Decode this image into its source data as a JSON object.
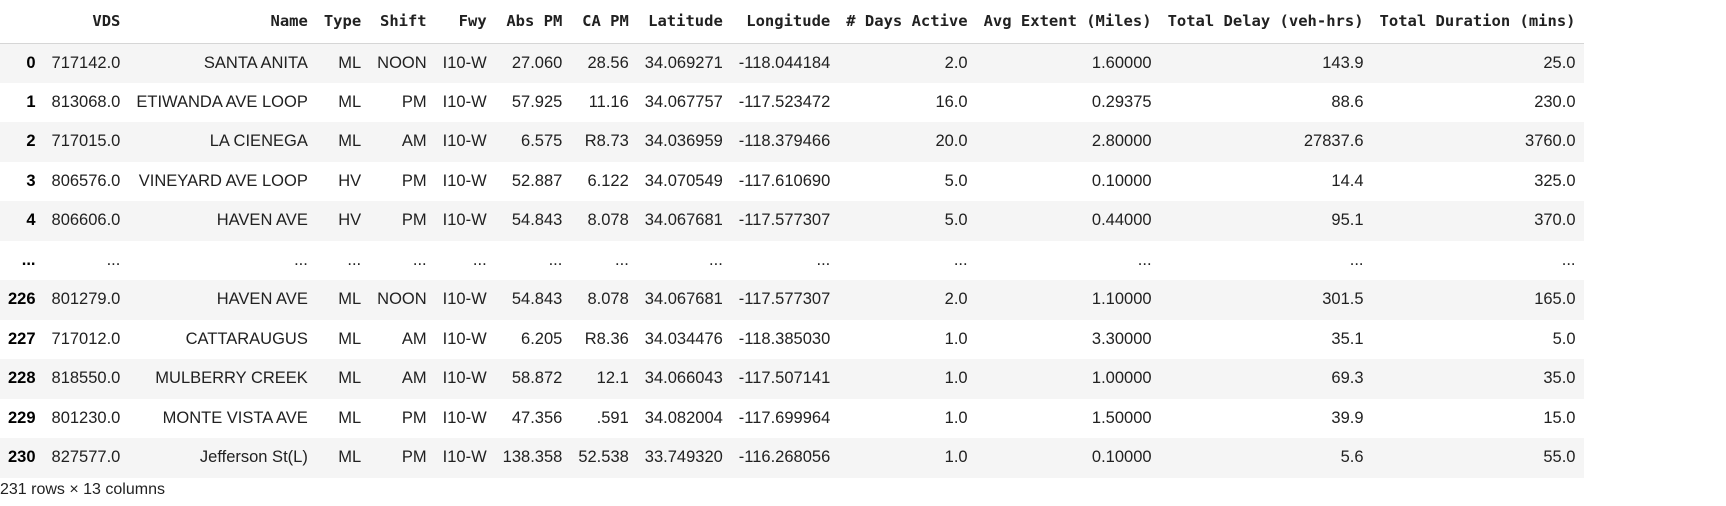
{
  "table": {
    "index_header": "",
    "columns": [
      "VDS",
      "Name",
      "Type",
      "Shift",
      "Fwy",
      "Abs PM",
      "CA PM",
      "Latitude",
      "Longitude",
      "# Days Active",
      "Avg Extent (Miles)",
      "Total Delay (veh-hrs)",
      "Total Duration (mins)"
    ],
    "rows": [
      {
        "index": "0",
        "cells": [
          "717142.0",
          "SANTA ANITA",
          "ML",
          "NOON",
          "I10-W",
          "27.060",
          "28.56",
          "34.069271",
          "-118.044184",
          "2.0",
          "1.60000",
          "143.9",
          "25.0"
        ]
      },
      {
        "index": "1",
        "cells": [
          "813068.0",
          "ETIWANDA AVE LOOP",
          "ML",
          "PM",
          "I10-W",
          "57.925",
          "11.16",
          "34.067757",
          "-117.523472",
          "16.0",
          "0.29375",
          "88.6",
          "230.0"
        ]
      },
      {
        "index": "2",
        "cells": [
          "717015.0",
          "LA CIENEGA",
          "ML",
          "AM",
          "I10-W",
          "6.575",
          "R8.73",
          "34.036959",
          "-118.379466",
          "20.0",
          "2.80000",
          "27837.6",
          "3760.0"
        ]
      },
      {
        "index": "3",
        "cells": [
          "806576.0",
          "VINEYARD AVE LOOP",
          "HV",
          "PM",
          "I10-W",
          "52.887",
          "6.122",
          "34.070549",
          "-117.610690",
          "5.0",
          "0.10000",
          "14.4",
          "325.0"
        ]
      },
      {
        "index": "4",
        "cells": [
          "806606.0",
          "HAVEN AVE",
          "HV",
          "PM",
          "I10-W",
          "54.843",
          "8.078",
          "34.067681",
          "-117.577307",
          "5.0",
          "0.44000",
          "95.1",
          "370.0"
        ]
      },
      {
        "index": "...",
        "cells": [
          "...",
          "...",
          "...",
          "...",
          "...",
          "...",
          "...",
          "...",
          "...",
          "...",
          "...",
          "...",
          "..."
        ]
      },
      {
        "index": "226",
        "cells": [
          "801279.0",
          "HAVEN AVE",
          "ML",
          "NOON",
          "I10-W",
          "54.843",
          "8.078",
          "34.067681",
          "-117.577307",
          "2.0",
          "1.10000",
          "301.5",
          "165.0"
        ]
      },
      {
        "index": "227",
        "cells": [
          "717012.0",
          "CATTARAUGUS",
          "ML",
          "AM",
          "I10-W",
          "6.205",
          "R8.36",
          "34.034476",
          "-118.385030",
          "1.0",
          "3.30000",
          "35.1",
          "5.0"
        ]
      },
      {
        "index": "228",
        "cells": [
          "818550.0",
          "MULBERRY CREEK",
          "ML",
          "AM",
          "I10-W",
          "58.872",
          "12.1",
          "34.066043",
          "-117.507141",
          "1.0",
          "1.00000",
          "69.3",
          "35.0"
        ]
      },
      {
        "index": "229",
        "cells": [
          "801230.0",
          "MONTE VISTA AVE",
          "ML",
          "PM",
          "I10-W",
          "47.356",
          ".591",
          "34.082004",
          "-117.699964",
          "1.0",
          "1.50000",
          "39.9",
          "15.0"
        ]
      },
      {
        "index": "230",
        "cells": [
          "827577.0",
          "Jefferson St(L)",
          "ML",
          "PM",
          "I10-W",
          "138.358",
          "52.538",
          "33.749320",
          "-116.268056",
          "1.0",
          "0.10000",
          "5.6",
          "55.0"
        ]
      }
    ]
  },
  "shape_text": "231 rows × 13 columns"
}
